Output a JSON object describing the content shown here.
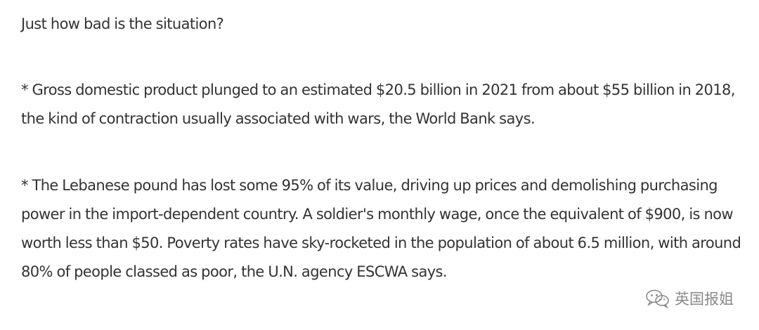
{
  "article": {
    "heading": "Just how bad is the situation?",
    "paragraph_1": "* Gross domestic product plunged to an estimated $20.5 billion in 2021 from about $55 billion in 2018, the kind of contraction usually associated with wars, the World Bank says.",
    "paragraph_2": "* The Lebanese pound has lost some 95% of its value, driving up prices and demolishing purchasing power in the import-dependent country. A soldier's monthly wage, once the equivalent of $900, is now worth less than $50. Poverty rates have sky-rocketed in the population of about 6.5 million, with around 80% of people classed as poor, the U.N. agency ESCWA says."
  },
  "watermark": {
    "icon": "wechat-logo-icon",
    "text": "英国报姐"
  },
  "colors": {
    "text": "#333333",
    "watermark": "#8a8a8a",
    "background": "#ffffff"
  }
}
